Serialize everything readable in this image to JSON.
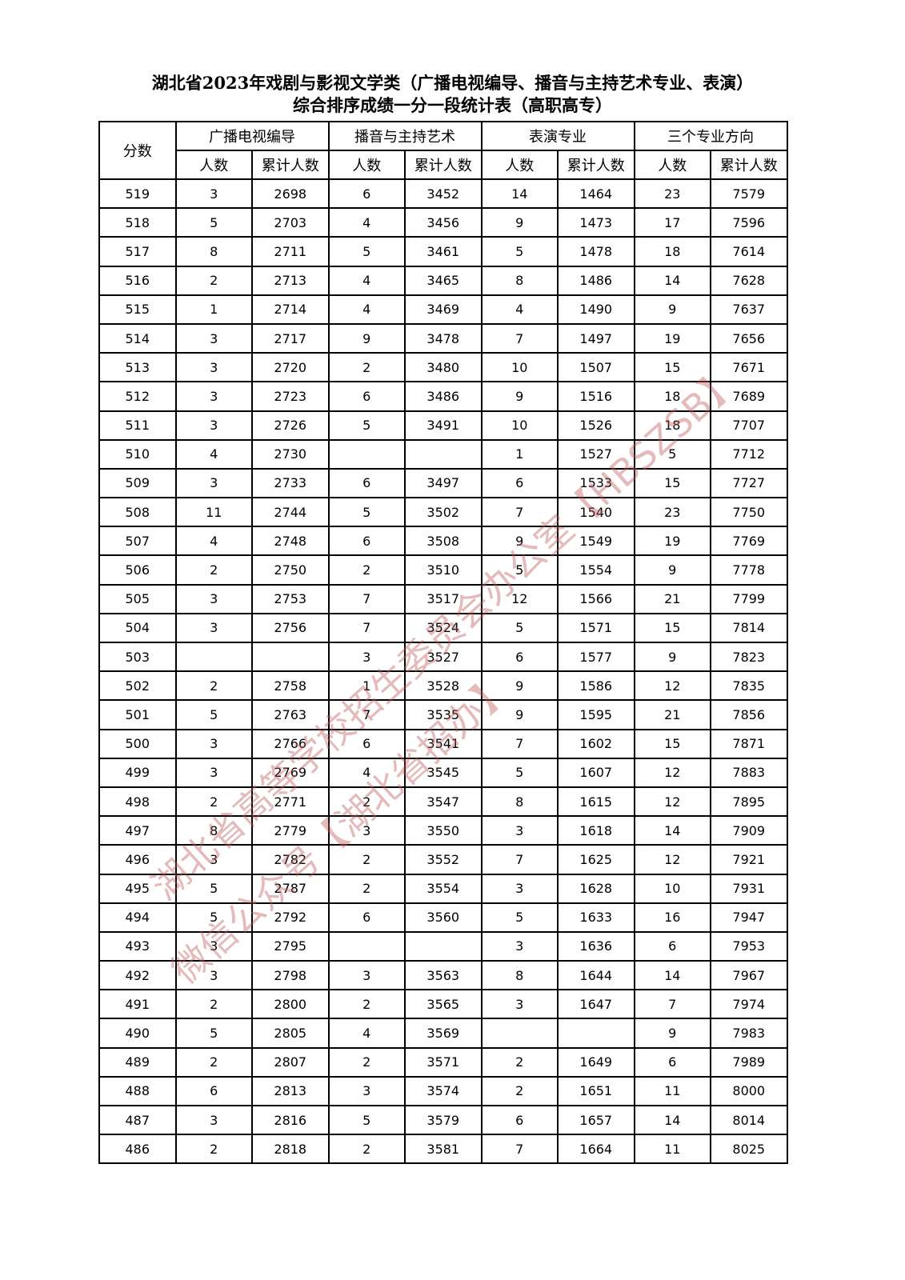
{
  "title_line1": "湖北省2023年戏剧与影视文学类（广播电视编导、播音与主持艺术专业、表演）",
  "title_line2": "综合排序成绩一分一段统计表（高职高专）",
  "table": {
    "score_header": "分数",
    "groups": [
      "广播电视编导",
      "播音与主持艺术",
      "表演专业",
      "三个专业方向"
    ],
    "sub_headers": [
      "人数",
      "累计人数",
      "人数",
      "累计人数",
      "人数",
      "累计人数",
      "人数",
      "累计人数"
    ],
    "rows": [
      [
        "519",
        "3",
        "2698",
        "6",
        "3452",
        "14",
        "1464",
        "23",
        "7579"
      ],
      [
        "518",
        "5",
        "2703",
        "4",
        "3456",
        "9",
        "1473",
        "17",
        "7596"
      ],
      [
        "517",
        "8",
        "2711",
        "5",
        "3461",
        "5",
        "1478",
        "18",
        "7614"
      ],
      [
        "516",
        "2",
        "2713",
        "4",
        "3465",
        "8",
        "1486",
        "14",
        "7628"
      ],
      [
        "515",
        "1",
        "2714",
        "4",
        "3469",
        "4",
        "1490",
        "9",
        "7637"
      ],
      [
        "514",
        "3",
        "2717",
        "9",
        "3478",
        "7",
        "1497",
        "19",
        "7656"
      ],
      [
        "513",
        "3",
        "2720",
        "2",
        "3480",
        "10",
        "1507",
        "15",
        "7671"
      ],
      [
        "512",
        "3",
        "2723",
        "6",
        "3486",
        "9",
        "1516",
        "18",
        "7689"
      ],
      [
        "511",
        "3",
        "2726",
        "5",
        "3491",
        "10",
        "1526",
        "18",
        "7707"
      ],
      [
        "510",
        "4",
        "2730",
        "",
        "",
        "1",
        "1527",
        "5",
        "7712"
      ],
      [
        "509",
        "3",
        "2733",
        "6",
        "3497",
        "6",
        "1533",
        "15",
        "7727"
      ],
      [
        "508",
        "11",
        "2744",
        "5",
        "3502",
        "7",
        "1540",
        "23",
        "7750"
      ],
      [
        "507",
        "4",
        "2748",
        "6",
        "3508",
        "9",
        "1549",
        "19",
        "7769"
      ],
      [
        "506",
        "2",
        "2750",
        "2",
        "3510",
        "5",
        "1554",
        "9",
        "7778"
      ],
      [
        "505",
        "3",
        "2753",
        "7",
        "3517",
        "12",
        "1566",
        "21",
        "7799"
      ],
      [
        "504",
        "3",
        "2756",
        "7",
        "3524",
        "5",
        "1571",
        "15",
        "7814"
      ],
      [
        "503",
        "",
        "",
        "3",
        "3527",
        "6",
        "1577",
        "9",
        "7823"
      ],
      [
        "502",
        "2",
        "2758",
        "1",
        "3528",
        "9",
        "1586",
        "12",
        "7835"
      ],
      [
        "501",
        "5",
        "2763",
        "7",
        "3535",
        "9",
        "1595",
        "21",
        "7856"
      ],
      [
        "500",
        "3",
        "2766",
        "6",
        "3541",
        "7",
        "1602",
        "15",
        "7871"
      ],
      [
        "499",
        "3",
        "2769",
        "4",
        "3545",
        "5",
        "1607",
        "12",
        "7883"
      ],
      [
        "498",
        "2",
        "2771",
        "2",
        "3547",
        "8",
        "1615",
        "12",
        "7895"
      ],
      [
        "497",
        "8",
        "2779",
        "3",
        "3550",
        "3",
        "1618",
        "14",
        "7909"
      ],
      [
        "496",
        "3",
        "2782",
        "2",
        "3552",
        "7",
        "1625",
        "12",
        "7921"
      ],
      [
        "495",
        "5",
        "2787",
        "2",
        "3554",
        "3",
        "1628",
        "10",
        "7931"
      ],
      [
        "494",
        "5",
        "2792",
        "6",
        "3560",
        "5",
        "1633",
        "16",
        "7947"
      ],
      [
        "493",
        "3",
        "2795",
        "",
        "",
        "3",
        "1636",
        "6",
        "7953"
      ],
      [
        "492",
        "3",
        "2798",
        "3",
        "3563",
        "8",
        "1644",
        "14",
        "7967"
      ],
      [
        "491",
        "2",
        "2800",
        "2",
        "3565",
        "3",
        "1647",
        "7",
        "7974"
      ],
      [
        "490",
        "5",
        "2805",
        "4",
        "3569",
        "",
        "",
        "9",
        "7983"
      ],
      [
        "489",
        "2",
        "2807",
        "2",
        "3571",
        "2",
        "1649",
        "6",
        "7989"
      ],
      [
        "488",
        "6",
        "2813",
        "3",
        "3574",
        "2",
        "1651",
        "11",
        "8000"
      ],
      [
        "487",
        "3",
        "2816",
        "5",
        "3579",
        "6",
        "1657",
        "14",
        "8014"
      ],
      [
        "486",
        "2",
        "2818",
        "2",
        "3581",
        "7",
        "1664",
        "11",
        "8025"
      ]
    ]
  },
  "watermark": {
    "line1": "湖北省高等学校招生委员会办公室【HBSZSB】",
    "line2": "微信公众号【湖北省招办】",
    "color": "#be5a5a"
  }
}
